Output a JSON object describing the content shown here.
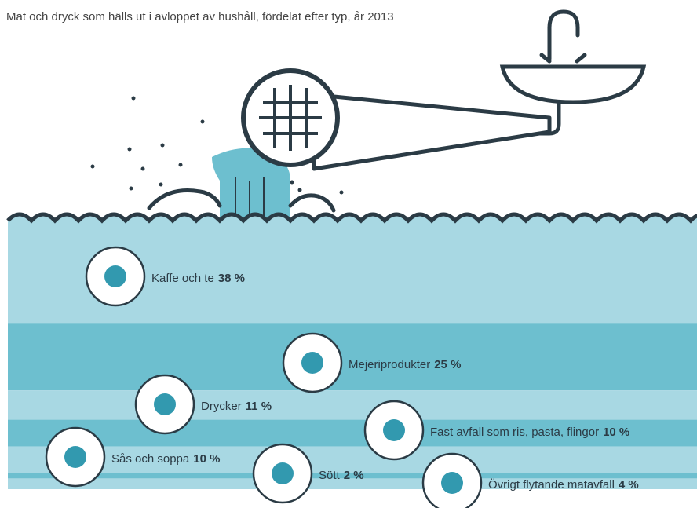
{
  "chart_data": {
    "type": "stacked-band",
    "title": "Mat och dryck som hälls ut i avloppet av hushåll, fördelat efter typ, år 2013",
    "categories": [
      "Kaffe och te",
      "Mejeriprodukter",
      "Drycker",
      "Fast avfall som ris, pasta, flingor",
      "Sås och soppa",
      "Sött",
      "Övrigt flytande matavfall"
    ],
    "values": [
      38,
      25,
      11,
      10,
      10,
      2,
      4
    ],
    "value_labels": [
      "38 %",
      "25 %",
      "11 %",
      "10 %",
      "10 %",
      "2 %",
      "4 %"
    ],
    "colors": [
      "#a8d8e3",
      "#6dbfcf",
      "#a8d8e3",
      "#6dbfcf",
      "#a8d8e3",
      "#6dbfcf",
      "#a8d8e3"
    ]
  }
}
